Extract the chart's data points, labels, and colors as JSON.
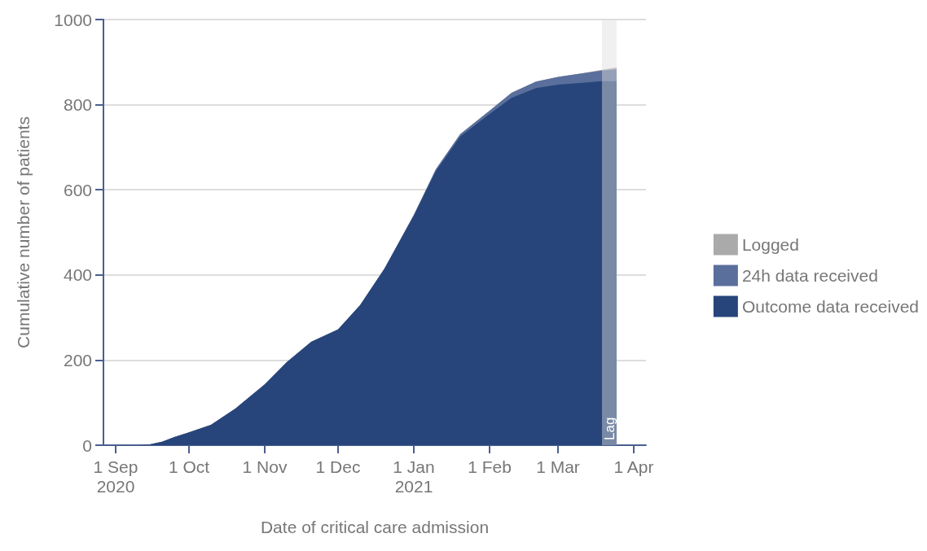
{
  "chart_data": {
    "type": "area",
    "xlabel": "Date of critical care admission",
    "ylabel": "Cumulative number of patients",
    "stacked": true,
    "grid": "y",
    "legend": "right",
    "x": [
      "2020-09-06",
      "2020-09-15",
      "2020-09-20",
      "2020-09-25",
      "2020-10-01",
      "2020-10-10",
      "2020-10-20",
      "2020-11-01",
      "2020-11-10",
      "2020-11-20",
      "2020-12-01",
      "2020-12-10",
      "2020-12-20",
      "2021-01-01",
      "2021-01-10",
      "2021-01-20",
      "2021-02-01",
      "2021-02-10",
      "2021-02-20",
      "2021-03-01",
      "2021-03-10",
      "2021-03-19",
      "2021-03-25"
    ],
    "series": [
      {
        "name": "Outcome data received",
        "color": "#27457a",
        "values": [
          0,
          2,
          8,
          19,
          30,
          48,
          86,
          143,
          195,
          243,
          272,
          329,
          415,
          539,
          644,
          725,
          778,
          816,
          839,
          847,
          851,
          855,
          855
        ]
      },
      {
        "name": "24h data received",
        "color": "#5a6f9c",
        "values": [
          0,
          0,
          0,
          0,
          0,
          0,
          0,
          0,
          0,
          0,
          0,
          0,
          0,
          2,
          4,
          6,
          8,
          12,
          15,
          18,
          22,
          25,
          28
        ]
      },
      {
        "name": "Logged",
        "color": "#aaaaaa",
        "values": [
          0,
          0,
          0,
          0,
          0,
          0,
          0,
          0,
          0,
          0,
          0,
          0,
          0,
          0,
          0,
          0,
          0,
          0,
          0,
          0,
          0,
          2,
          4
        ]
      }
    ],
    "xlim": [
      "2020-08-27",
      "2021-04-06"
    ],
    "xticks": [
      {
        "value": "2020-09-01",
        "label": "1 Sep\n2020"
      },
      {
        "value": "2020-10-01",
        "label": "1 Oct"
      },
      {
        "value": "2020-11-01",
        "label": "1 Nov"
      },
      {
        "value": "2020-12-01",
        "label": "1 Dec"
      },
      {
        "value": "2021-01-01",
        "label": "1 Jan\n2021"
      },
      {
        "value": "2021-02-01",
        "label": "1 Feb"
      },
      {
        "value": "2021-03-01",
        "label": "1 Mar"
      },
      {
        "value": "2021-04-01",
        "label": "1 Apr"
      }
    ],
    "ylim": [
      0,
      1000
    ],
    "yticks": [
      0,
      200,
      400,
      600,
      800,
      1000
    ],
    "bands": [
      {
        "axis": "x",
        "from": "2021-03-19",
        "to": "2021-03-25",
        "label": "Lag",
        "color": "#dddddd"
      }
    ]
  }
}
